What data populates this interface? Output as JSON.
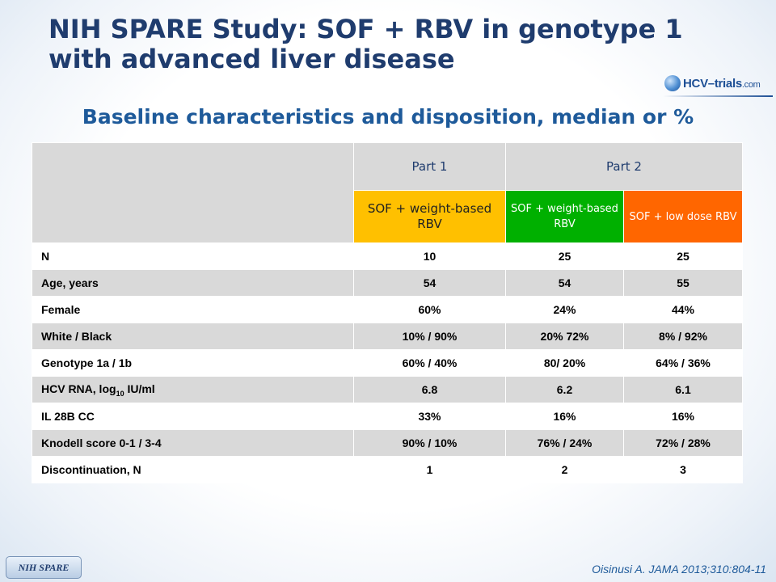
{
  "title": "NIH SPARE Study: SOF + RBV in genotype 1 with advanced liver disease",
  "logo": {
    "prefix": "HCV",
    "dash": "–",
    "name": "trials",
    "suffix": ".com"
  },
  "subtitle": "Baseline characteristics and disposition, median or %",
  "table": {
    "parts": [
      "Part 1",
      "Part 2"
    ],
    "arms": [
      "SOF + weight-based RBV",
      "SOF + weight-based RBV",
      "SOF + low dose RBV"
    ],
    "rows": [
      {
        "label": "N",
        "values": [
          "10",
          "25",
          "25"
        ]
      },
      {
        "label": "Age, years",
        "values": [
          "54",
          "54",
          "55"
        ]
      },
      {
        "label": "Female",
        "values": [
          "60%",
          "24%",
          "44%"
        ]
      },
      {
        "label": "White / Black",
        "values": [
          "10% / 90%",
          "20% 72%",
          "8% / 92%"
        ]
      },
      {
        "label": "Genotype 1a / 1b",
        "values": [
          "60% / 40%",
          "80/ 20%",
          "64% / 36%"
        ]
      },
      {
        "label_pre": "HCV RNA, log",
        "label_sub": "10",
        "label_post": " IU/ml",
        "values": [
          "6.8",
          "6.2",
          "6.1"
        ]
      },
      {
        "label": "IL 28B CC",
        "values": [
          "33%",
          "16%",
          "16%"
        ]
      },
      {
        "label": "Knodell score 0-1 / 3-4",
        "values": [
          "90% / 10%",
          "76% / 24%",
          "72% / 28%"
        ]
      },
      {
        "label": "Discontinuation, N",
        "values": [
          "1",
          "2",
          "3"
        ]
      }
    ]
  },
  "badge": "NIH SPARE",
  "citation": "Oisinusi A. JAMA 2013;310:804-11",
  "colors": {
    "title": "#1f3c6e",
    "subtitle": "#1e5a9a",
    "arm1": "#ffc000",
    "arm2": "#00b000",
    "arm3": "#ff6600",
    "row_shade": "#d9d9d9"
  }
}
